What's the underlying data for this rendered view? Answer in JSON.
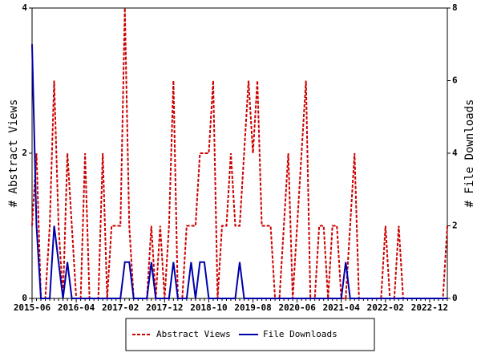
{
  "chart_data": {
    "type": "line",
    "categories": [
      "2015-06",
      null,
      null,
      null,
      null,
      null,
      null,
      null,
      null,
      null,
      "2016-04",
      null,
      null,
      null,
      null,
      null,
      null,
      null,
      null,
      null,
      "2017-02",
      null,
      null,
      null,
      null,
      null,
      null,
      null,
      null,
      null,
      "2017-12",
      null,
      null,
      null,
      null,
      null,
      null,
      null,
      null,
      null,
      "2018-10",
      null,
      null,
      null,
      null,
      null,
      null,
      null,
      null,
      null,
      "2019-08",
      null,
      null,
      null,
      null,
      null,
      null,
      null,
      null,
      null,
      "2020-06",
      null,
      null,
      null,
      null,
      null,
      null,
      null,
      null,
      null,
      "2021-04",
      null,
      null,
      null,
      null,
      null,
      null,
      null,
      null,
      null,
      "2022-02",
      null,
      null,
      null,
      null,
      null,
      null,
      null,
      null,
      null,
      "2022-12",
      null,
      null,
      null,
      null
    ],
    "series": [
      {
        "name": "Abstract Views",
        "color": "#cc0000",
        "dashed": true,
        "axis": "y",
        "values": [
          1,
          2,
          0,
          0,
          1,
          3,
          1,
          0,
          2,
          1,
          0,
          0,
          2,
          0,
          0,
          0,
          2,
          0,
          1,
          1,
          1,
          4,
          1,
          0,
          0,
          0,
          0,
          1,
          0,
          1,
          0,
          1,
          3,
          0,
          0,
          1,
          1,
          1,
          2,
          2,
          2,
          3,
          0,
          1,
          1,
          2,
          1,
          1,
          2,
          3,
          2,
          3,
          1,
          1,
          1,
          0,
          0,
          1,
          2,
          0,
          1,
          2,
          3,
          0,
          0,
          1,
          1,
          0,
          1,
          1,
          0,
          0,
          1,
          2,
          0,
          0,
          0,
          0,
          0,
          0,
          1,
          0,
          0,
          1,
          0,
          0,
          0,
          0,
          0,
          0,
          0,
          0,
          0,
          0,
          1
        ]
      },
      {
        "name": "File Downloads",
        "color": "#0000aa",
        "dashed": false,
        "axis": "y2",
        "values": [
          7,
          2,
          0,
          0,
          0,
          2,
          1,
          0,
          1,
          0,
          0,
          0,
          0,
          0,
          0,
          0,
          0,
          0,
          0,
          0,
          0,
          1,
          1,
          0,
          0,
          0,
          0,
          1,
          0,
          0,
          0,
          0,
          1,
          0,
          0,
          0,
          1,
          0,
          1,
          1,
          0,
          0,
          0,
          0,
          0,
          0,
          0,
          1,
          0,
          0,
          0,
          0,
          0,
          0,
          0,
          0,
          0,
          0,
          0,
          0,
          0,
          0,
          0,
          0,
          0,
          0,
          0,
          0,
          0,
          0,
          0,
          1,
          0,
          0,
          0,
          0,
          0,
          0,
          0,
          0,
          0,
          0,
          0,
          0,
          0,
          0,
          0,
          0,
          0,
          0,
          0,
          0,
          0,
          0,
          0
        ]
      }
    ],
    "ylabel": "# Abstract Views",
    "y2label": "# File Downloads",
    "ylim": [
      0,
      4
    ],
    "yticks": [
      0,
      2,
      4
    ],
    "y2lim": [
      0,
      8
    ],
    "y2ticks": [
      0,
      2,
      4,
      6,
      8
    ]
  }
}
